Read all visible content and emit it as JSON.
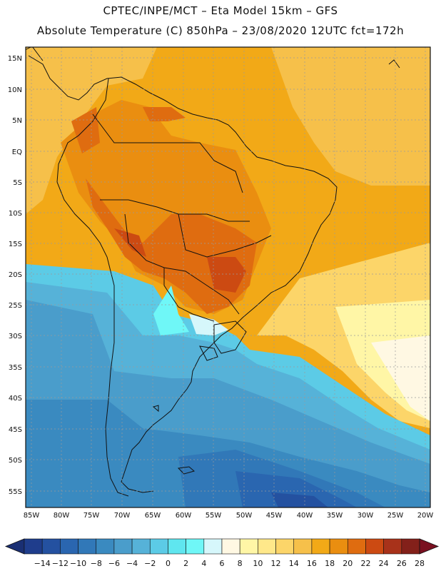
{
  "header": {
    "line1": "CPTEC/INPE/MCT –  Eta Model 15km – GFS",
    "line2": "Absolute Temperature (C) 850hPa – 23/08/2020 12UTC fct=172h"
  },
  "map": {
    "lat_ticks": [
      "15N",
      "10N",
      "5N",
      "EQ",
      "5S",
      "10S",
      "15S",
      "20S",
      "25S",
      "30S",
      "35S",
      "40S",
      "45S",
      "50S",
      "55S"
    ],
    "lon_ticks": [
      "85W",
      "80W",
      "75W",
      "70W",
      "65W",
      "60W",
      "55W",
      "50W",
      "45W",
      "40W",
      "35W",
      "30W",
      "25W",
      "20W"
    ]
  },
  "colorbar": {
    "labels": [
      "-14",
      "-12",
      "-10",
      "-8",
      "-6",
      "-4",
      "-2",
      "0",
      "2",
      "4",
      "6",
      "8",
      "10",
      "12",
      "14",
      "16",
      "18",
      "20",
      "22",
      "24",
      "26",
      "28"
    ],
    "colors": [
      "#1f3d8c",
      "#2451a0",
      "#2a66b0",
      "#3178b8",
      "#3a8ac0",
      "#4a9dcb",
      "#56b2d8",
      "#5ccbe6",
      "#5fe6ef",
      "#6ff7f7",
      "#d6f7fb",
      "#fff8e3",
      "#fff6a6",
      "#ffe88a",
      "#fcd569",
      "#f6c04a",
      "#f2a917",
      "#ea8e10",
      "#df6c10",
      "#cc4a12",
      "#a8321a",
      "#83201a"
    ],
    "low_arrow_color": "#1a2f73",
    "high_arrow_color": "#7a1020"
  }
}
